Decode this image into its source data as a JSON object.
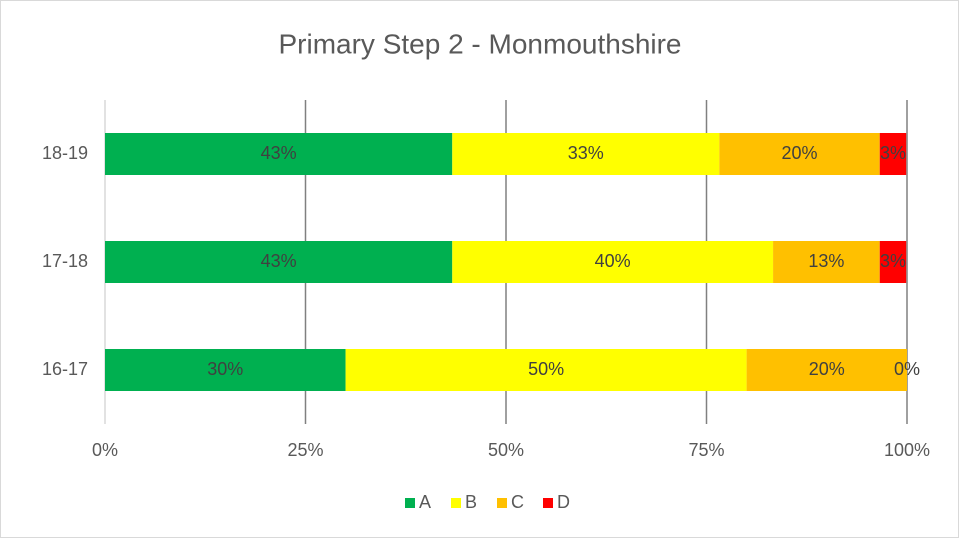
{
  "chart_data": {
    "type": "stacked-bar-horizontal",
    "title": "Primary Step 2 - Monmouthshire",
    "categories": [
      "18-19",
      "17-18",
      "16-17"
    ],
    "series": [
      {
        "name": "A",
        "color": "#00b050",
        "values": [
          43.3,
          43.3,
          30
        ],
        "value_labels": [
          "43%",
          "43%",
          "30%"
        ]
      },
      {
        "name": "B",
        "color": "#ffff00",
        "values": [
          33.3,
          40,
          50
        ],
        "value_labels": [
          "33%",
          "40%",
          "50%"
        ]
      },
      {
        "name": "C",
        "color": "#ffc000",
        "values": [
          20,
          13.3,
          20
        ],
        "value_labels": [
          "20%",
          "13%",
          "20%"
        ]
      },
      {
        "name": "D",
        "color": "#ff0000",
        "values": [
          3.3,
          3.3,
          0
        ],
        "value_labels": [
          "3%",
          "3%",
          "0%"
        ]
      }
    ],
    "xlim": [
      0,
      100
    ],
    "xticks": [
      {
        "value": 0,
        "label": "0%"
      },
      {
        "value": 25,
        "label": "25%"
      },
      {
        "value": 50,
        "label": "50%"
      },
      {
        "value": 75,
        "label": "75%"
      },
      {
        "value": 100,
        "label": "100%"
      }
    ],
    "grid": true,
    "legend": "bottom"
  }
}
